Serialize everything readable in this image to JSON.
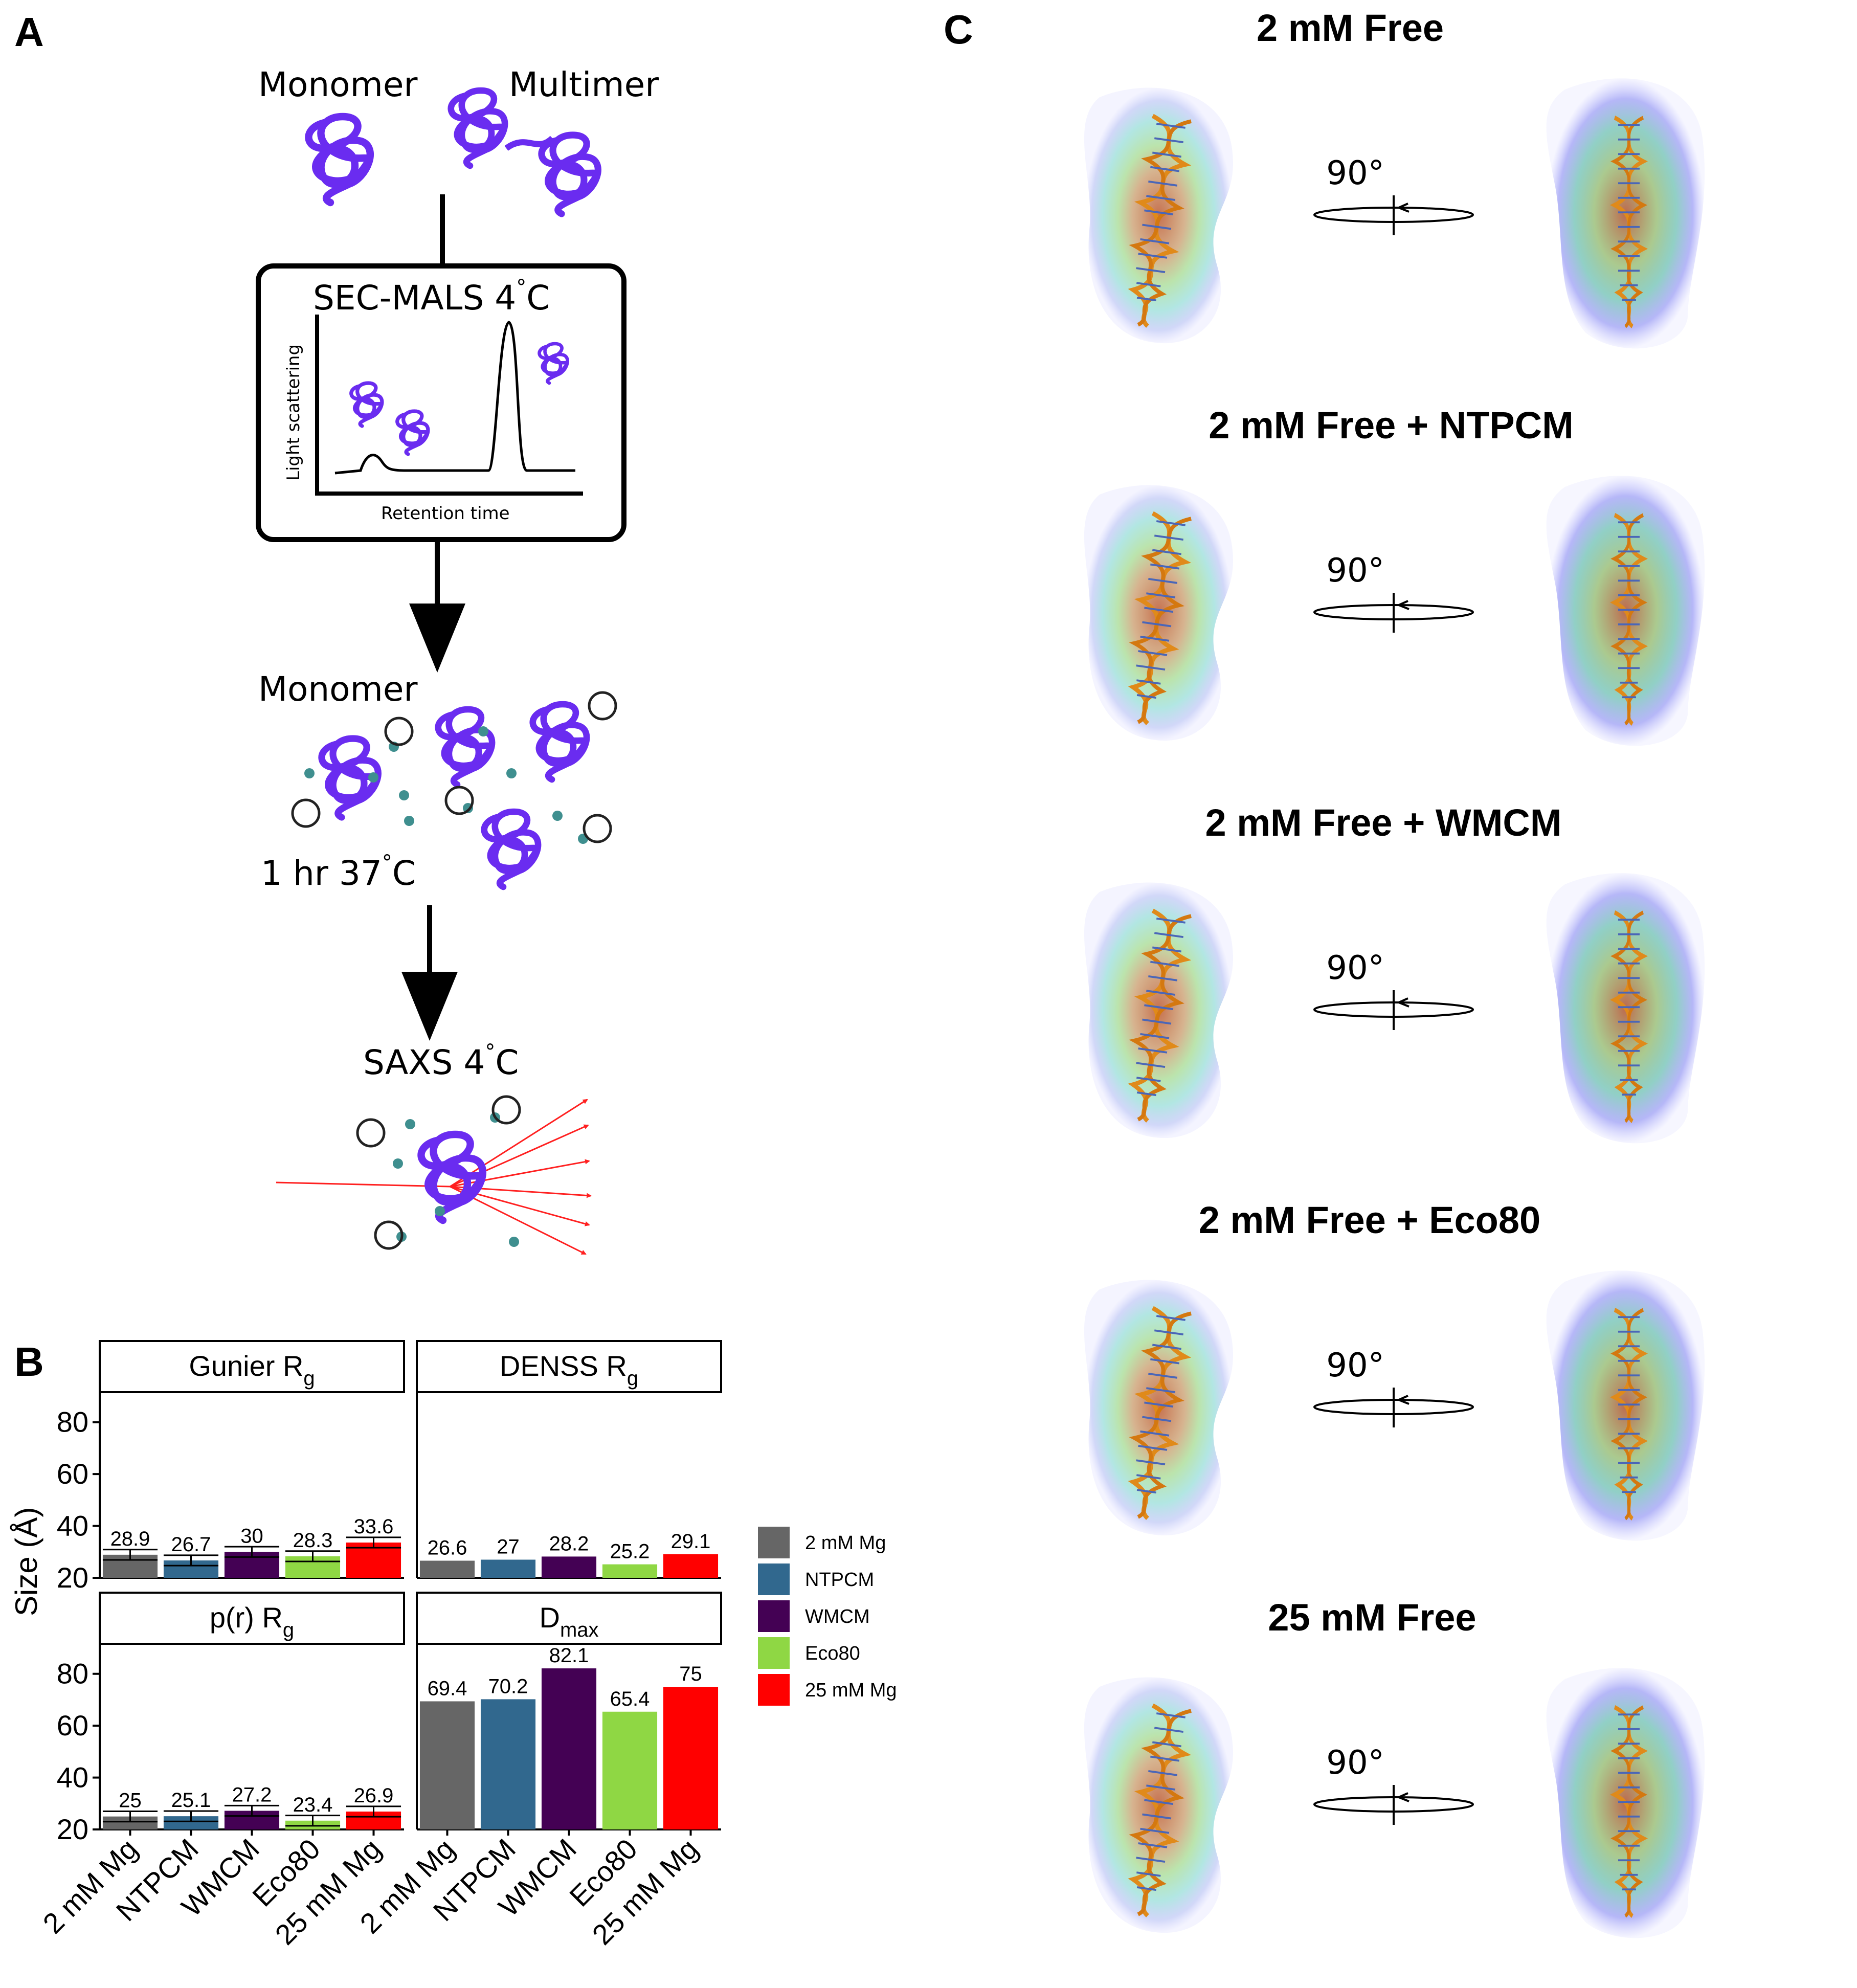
{
  "panels": {
    "a": "A",
    "b": "B",
    "c": "C"
  },
  "panel_a": {
    "monomer_top": "Monomer",
    "multimer_top": "Multimer",
    "sec_title": "SEC-MALS 4",
    "sec_unit": "C",
    "y_axis": "Light scattering",
    "x_axis": "Retention time",
    "monomer_mid": "Monomer",
    "incubation": "1 hr 37",
    "incubation_unit": "C",
    "saxs": "SAXS 4",
    "saxs_unit": "C",
    "degree_symbol": "°"
  },
  "panel_c": {
    "rows": [
      {
        "title": "2 mM Free",
        "rotation": "90°"
      },
      {
        "title": "2 mM Free + NTPCM",
        "rotation": "90°"
      },
      {
        "title": "2 mM Free + WMCM",
        "rotation": "90°"
      },
      {
        "title": "2 mM Free + Eco80",
        "rotation": "90°"
      },
      {
        "title": "25 mM Free",
        "rotation": "90°"
      }
    ]
  },
  "chart_data": {
    "type": "bar",
    "ylabel": "Size (Å)",
    "categories": [
      "2 mM Mg",
      "NTPCM",
      "WMCM",
      "Eco80",
      "25 mM Mg"
    ],
    "colors": [
      "#666666",
      "#31688e",
      "#440154",
      "#8fd744",
      "#ff0000"
    ],
    "legend": {
      "position": "right",
      "entries": [
        "2 mM Mg",
        "NTPCM",
        "WMCM",
        "Eco80",
        "25 mM Mg"
      ]
    },
    "facets": [
      {
        "title": "Gunier R",
        "subscript": "g",
        "values": [
          28.9,
          26.7,
          30,
          28.3,
          33.6
        ],
        "labels": [
          "28.9",
          "26.7",
          "30",
          "28.3",
          "33.6"
        ],
        "error_bars": true,
        "ylim": [
          20,
          90
        ],
        "yticks": [
          "20",
          "40",
          "60",
          "80"
        ]
      },
      {
        "title": "DENSS R",
        "subscript": "g",
        "values": [
          26.6,
          27,
          28.2,
          25.2,
          29.1
        ],
        "labels": [
          "26.6",
          "27",
          "28.2",
          "25.2",
          "29.1"
        ],
        "error_bars": false,
        "ylim": [
          20,
          90
        ],
        "yticks": [
          "20",
          "40",
          "60",
          "80"
        ]
      },
      {
        "title": "p(r) R",
        "subscript": "g",
        "values": [
          25,
          25.1,
          27.2,
          23.4,
          26.9
        ],
        "labels": [
          "25",
          "25.1",
          "27.2",
          "23.4",
          "26.9"
        ],
        "error_bars": true,
        "ylim": [
          20,
          90
        ],
        "yticks": [
          "20",
          "40",
          "60",
          "80"
        ]
      },
      {
        "title": "D",
        "subscript": "max",
        "values": [
          69.4,
          70.2,
          82.1,
          65.4,
          75
        ],
        "labels": [
          "69.4",
          "70.2",
          "82.1",
          "65.4",
          "75"
        ],
        "error_bars": false,
        "ylim": [
          20,
          90
        ],
        "yticks": [
          "20",
          "40",
          "60",
          "80"
        ]
      }
    ]
  }
}
